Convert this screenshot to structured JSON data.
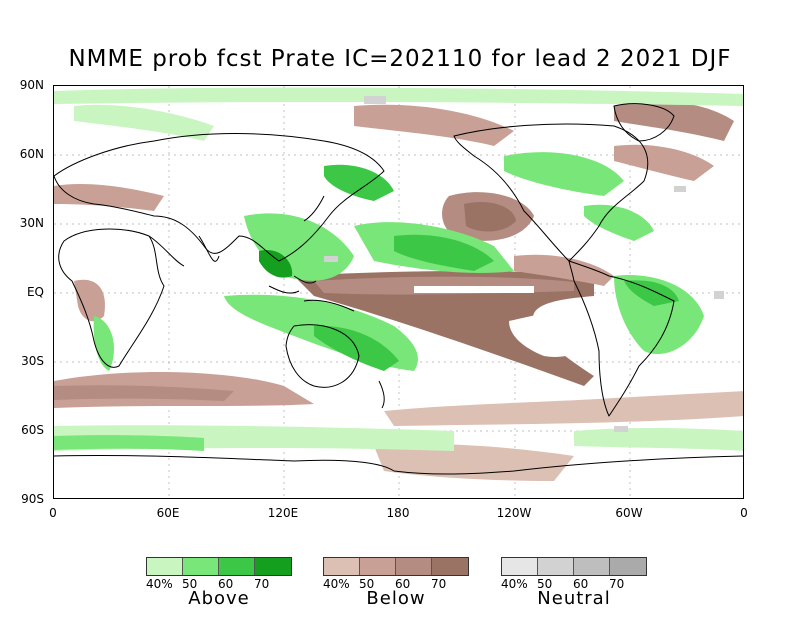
{
  "title": "NMME prob fcst Prate IC=202110 for lead 2 2021 DJF",
  "axes": {
    "y_labels": [
      "90N",
      "60N",
      "30N",
      "EQ",
      "30S",
      "60S",
      "90S"
    ],
    "x_labels": [
      "0",
      "60E",
      "120E",
      "180",
      "120W",
      "60W",
      "0"
    ]
  },
  "legends": [
    {
      "caption": "Above",
      "ticks": [
        "40%",
        "50",
        "60",
        "70"
      ],
      "colors": [
        "#c8f5c0",
        "#78e678",
        "#3cc846",
        "#14a01e"
      ]
    },
    {
      "caption": "Below",
      "ticks": [
        "40%",
        "50",
        "60",
        "70"
      ],
      "colors": [
        "#dcc0b4",
        "#c8a096",
        "#b48c82",
        "#9b7365"
      ]
    },
    {
      "caption": "Neutral",
      "ticks": [
        "40%",
        "50",
        "60",
        "70"
      ],
      "colors": [
        "#e6e6e6",
        "#d2d2d2",
        "#bebebe",
        "#aaaaaa"
      ]
    }
  ]
}
